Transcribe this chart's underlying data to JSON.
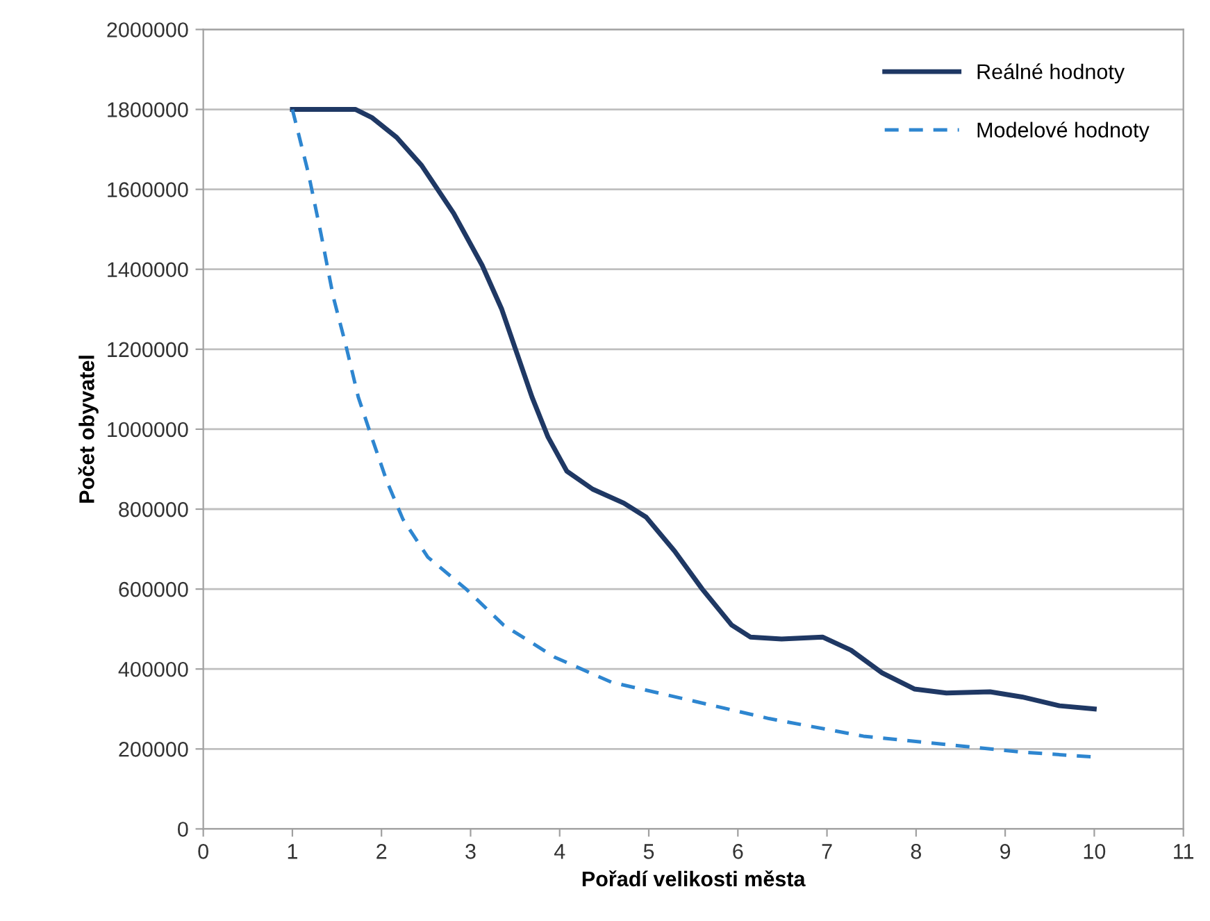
{
  "chart_data": {
    "type": "line",
    "xlabel": "Pořadí velikosti města",
    "ylabel": "Počet obyvatel",
    "series": [
      {
        "name": "Reálné hodnoty",
        "color": "#1f3864",
        "line_style": "solid",
        "x": [
          1,
          1.46,
          1.71,
          1.89,
          2.17,
          2.45,
          2.81,
          3.13,
          3.35,
          3.52,
          3.69,
          3.87,
          4.08,
          4.37,
          4.72,
          4.97,
          5.29,
          5.6,
          5.93,
          6.14,
          6.49,
          6.95,
          7.27,
          7.62,
          7.98,
          8.34,
          8.83,
          9.19,
          9.61,
          10
        ],
        "values": [
          1800000,
          1800000,
          1800000,
          1780000,
          1730000,
          1660000,
          1540000,
          1410000,
          1300000,
          1190000,
          1080000,
          980000,
          895000,
          850000,
          815000,
          780000,
          695000,
          600000,
          510000,
          480000,
          475000,
          480000,
          447000,
          390000,
          350000,
          340000,
          343000,
          330000,
          308000,
          300000
        ]
      },
      {
        "name": "Modelové hodnoty",
        "color": "#2e86d0",
        "line_style": "dashed",
        "x": [
          1,
          1.18,
          1.32,
          1.46,
          1.6,
          1.74,
          1.89,
          2.06,
          2.24,
          2.52,
          2.95,
          3.37,
          3.94,
          4.58,
          5.5,
          6.35,
          7.41,
          8.48,
          9.19,
          10
        ],
        "values": [
          1800000,
          1640000,
          1490000,
          1330000,
          1210000,
          1080000,
          980000,
          870000,
          775000,
          680000,
          600000,
          510000,
          430000,
          367000,
          320000,
          276000,
          232000,
          208000,
          192000,
          180000
        ]
      }
    ],
    "xlim": [
      0,
      11
    ],
    "xticks": [
      0,
      1,
      2,
      3,
      4,
      5,
      6,
      7,
      8,
      9,
      10,
      11
    ],
    "ylim": [
      0,
      2000000
    ],
    "yticks": [
      0,
      200000,
      400000,
      600000,
      800000,
      1000000,
      1200000,
      1400000,
      1600000,
      1800000,
      2000000
    ],
    "grid": "y",
    "legend": "top right",
    "marker": "none"
  }
}
